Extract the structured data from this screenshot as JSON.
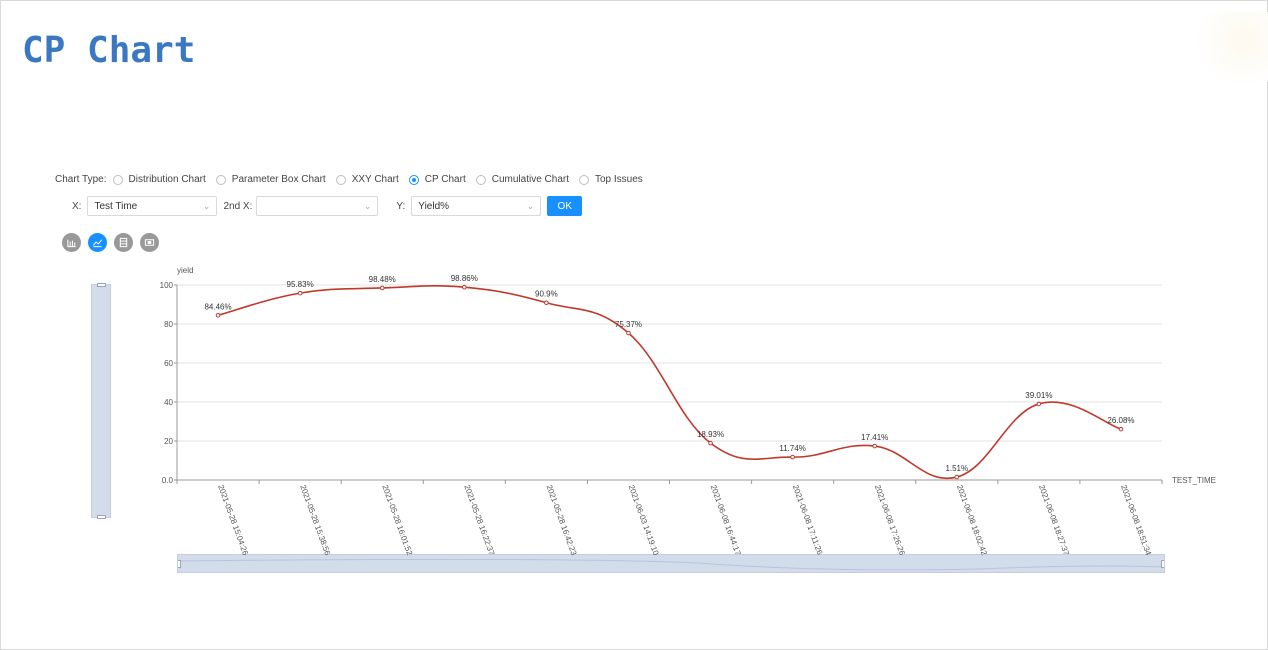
{
  "page": {
    "title": "CP Chart"
  },
  "controls": {
    "chart_type_label": "Chart Type:",
    "chart_types": [
      {
        "label": "Distribution Chart",
        "checked": false
      },
      {
        "label": "Parameter Box Chart",
        "checked": false
      },
      {
        "label": "XXY Chart",
        "checked": false
      },
      {
        "label": "CP Chart",
        "checked": true
      },
      {
        "label": "Cumulative Chart",
        "checked": false
      },
      {
        "label": "Top Issues",
        "checked": false
      }
    ],
    "x_label": "X:",
    "x_value": "Test Time",
    "x2_label": "2nd X:",
    "x2_value": "",
    "y_label": "Y:",
    "y_value": "Yield%",
    "ok_label": "OK"
  },
  "view_icons": [
    "bar-chart-icon",
    "line-chart-icon",
    "table-icon",
    "image-icon"
  ],
  "accent": "#1890ff",
  "chart_data": {
    "type": "line",
    "title": "",
    "ylabel": "yield",
    "xlabel": "TEST_TIME",
    "ylim": [
      0,
      100
    ],
    "yticks": [
      "0.0",
      "20",
      "40",
      "60",
      "80",
      "100"
    ],
    "grid": true,
    "categories": [
      "2021-05-28 15:04:26",
      "2021-05-28 15:38:56",
      "2021-05-28 16:01:52",
      "2021-05-28 16:22:37",
      "2021-05-28 16:42:23",
      "2021-06-03 14:19:10",
      "2021-06-08 16:44:17",
      "2021-06-08 17:11:26",
      "2021-06-08 17:26:26",
      "2021-06-08 18:02:42",
      "2021-06-08 18:27:37",
      "2021-06-08 18:51:34"
    ],
    "series": [
      {
        "values": [
          84.46,
          95.83,
          98.48,
          98.86,
          90.9,
          75.37,
          18.93,
          11.74,
          17.41,
          1.51,
          39.01,
          26.08
        ],
        "labels": [
          "84.46%",
          "95.83%",
          "98.48%",
          "98.86%",
          "90.9%",
          "75.37%",
          "18.93%",
          "11.74%",
          "17.41%",
          "1.51%",
          "39.01%",
          "26.08%"
        ],
        "color": "#c0392b"
      }
    ]
  }
}
